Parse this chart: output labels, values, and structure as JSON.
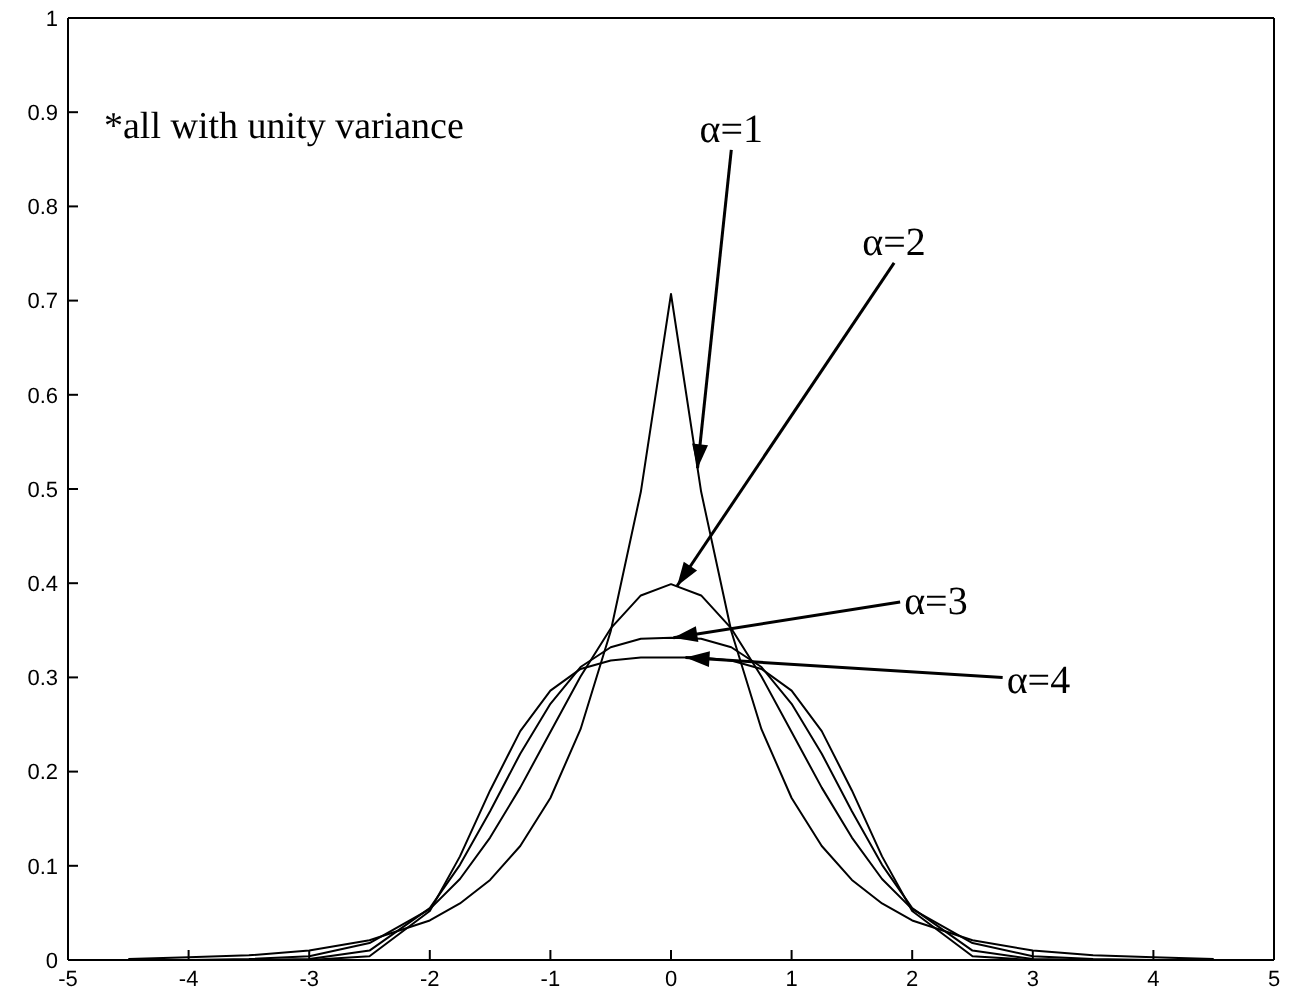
{
  "chart_data": {
    "type": "line",
    "x": [
      -4.5,
      -4,
      -3.5,
      -3,
      -2.5,
      -2,
      -1.75,
      -1.5,
      -1.25,
      -1,
      -0.75,
      -0.5,
      -0.25,
      0,
      0.25,
      0.5,
      0.75,
      1,
      1.25,
      1.5,
      1.75,
      2,
      2.5,
      3,
      3.5,
      4,
      4.5
    ],
    "series": [
      {
        "color": "#000000",
        "values": [
          0.001,
          0.003,
          0.005,
          0.01,
          0.021,
          0.042,
          0.06,
          0.085,
          0.121,
          0.172,
          0.245,
          0.349,
          0.497,
          0.707,
          0.497,
          0.349,
          0.245,
          0.172,
          0.121,
          0.085,
          0.06,
          0.042,
          0.021,
          0.01,
          0.005,
          0.003,
          0.001
        ]
      },
      {
        "color": "#000000",
        "values": [
          0,
          0,
          0.001,
          0.004,
          0.018,
          0.054,
          0.086,
          0.13,
          0.183,
          0.242,
          0.301,
          0.352,
          0.387,
          0.399,
          0.387,
          0.352,
          0.301,
          0.242,
          0.183,
          0.13,
          0.086,
          0.054,
          0.018,
          0.004,
          0.001,
          0,
          0
        ]
      },
      {
        "color": "#000000",
        "values": [
          null,
          0,
          0,
          0.001,
          0.01,
          0.055,
          0.101,
          0.158,
          0.219,
          0.272,
          0.311,
          0.332,
          0.341,
          0.342,
          0.341,
          0.332,
          0.311,
          0.272,
          0.219,
          0.158,
          0.101,
          0.055,
          0.01,
          0.001,
          0,
          0,
          null
        ]
      },
      {
        "color": "#000000",
        "values": [
          null,
          null,
          0,
          0,
          0.004,
          0.052,
          0.11,
          0.18,
          0.243,
          0.286,
          0.309,
          0.318,
          0.321,
          0.321,
          0.321,
          0.318,
          0.309,
          0.286,
          0.243,
          0.18,
          0.11,
          0.052,
          0.004,
          0,
          0,
          null,
          null
        ]
      }
    ],
    "xlim": [
      -5,
      5
    ],
    "xticks": [
      -5,
      -4,
      -3,
      -2,
      -1,
      0,
      1,
      2,
      3,
      4,
      5
    ],
    "ylim": [
      0,
      1
    ],
    "yticks": [
      0,
      0.1,
      0.2,
      0.3,
      0.4,
      0.5,
      0.6,
      0.7,
      0.8,
      0.9,
      1
    ],
    "grid": false,
    "legend": false,
    "marker": "none",
    "line_style": "solid",
    "annotations": [
      "*all with unity variance",
      {
        "text": "α=1",
        "x": 0.22,
        "y": 0.522
      },
      {
        "text": "α=2",
        "x": 0.05,
        "y": 0.397
      },
      {
        "text": "α=3",
        "x": 0.02,
        "y": 0.342
      },
      {
        "text": "α=4",
        "x": 0.12,
        "y": 0.321
      }
    ]
  }
}
